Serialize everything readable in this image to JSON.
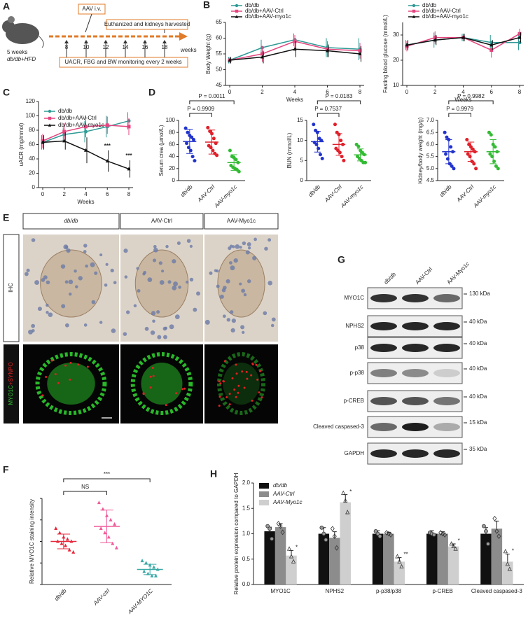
{
  "panels": [
    "A",
    "B",
    "C",
    "D",
    "E",
    "F",
    "G",
    "H"
  ],
  "schematic": {
    "age": "5 weeks",
    "model": "db/db+HFD",
    "injection": "AAV i.v.",
    "endpoint": "Euthanized and kidneys harvested",
    "weeks": [
      8,
      10,
      12,
      14,
      16,
      18
    ],
    "unit": "weeks",
    "monitoring": "UACR, FBG and BW monitoring every 2 weeks"
  },
  "chart_data": [
    {
      "type": "line",
      "y_label": "Body Weight (g)",
      "x_label": "Weeks",
      "legend": "top",
      "x": [
        0,
        2,
        4,
        6,
        8
      ],
      "xlim": [
        0,
        8
      ],
      "xticks": [
        0,
        2,
        4,
        6,
        8
      ],
      "ylim": [
        45,
        65
      ],
      "yticks": [
        45,
        50,
        55,
        60,
        65
      ],
      "series": [
        {
          "name": "db/db",
          "color": "#2f9a96",
          "marker": "circle",
          "values": [
            53,
            57,
            59.5,
            57,
            56.5
          ],
          "errors": [
            1,
            2.5,
            2,
            3,
            3.5
          ]
        },
        {
          "name": "db/db+AAV-Ctrl",
          "color": "#e5457f",
          "marker": "square",
          "values": [
            53,
            55,
            59,
            56.5,
            56
          ],
          "errors": [
            1,
            2.5,
            2,
            2.5,
            2.5
          ]
        },
        {
          "name": "db/db+AAV-myo1c",
          "color": "#111111",
          "marker": "triangle",
          "values": [
            53,
            54,
            56.5,
            56,
            55
          ],
          "errors": [
            1,
            2,
            2.5,
            2,
            2.5
          ]
        }
      ]
    },
    {
      "type": "line",
      "y_label": "Fasting blood glucose (mmol/L)",
      "x_label": "Weeks",
      "legend": "top",
      "x": [
        0,
        2,
        4,
        6,
        8
      ],
      "xlim": [
        0,
        8
      ],
      "xticks": [
        0,
        2,
        4,
        6,
        8
      ],
      "ylim": [
        10,
        35
      ],
      "yticks": [
        10,
        20,
        30
      ],
      "series": [
        {
          "name": "db/db",
          "color": "#2f9a96",
          "marker": "circle",
          "values": [
            26,
            28,
            29,
            27,
            27
          ],
          "errors": [
            2,
            3,
            1.5,
            3,
            3
          ]
        },
        {
          "name": "db/db+AAV-Ctrl",
          "color": "#e5457f",
          "marker": "square",
          "values": [
            25.5,
            29,
            29,
            24,
            30.5
          ],
          "errors": [
            2,
            2.5,
            1.5,
            3,
            2
          ]
        },
        {
          "name": "db/db+AAV-myo1c",
          "color": "#111111",
          "marker": "triangle",
          "values": [
            26,
            28,
            29,
            26,
            29
          ],
          "errors": [
            2,
            2,
            1.5,
            2,
            2
          ]
        }
      ]
    },
    {
      "type": "line",
      "y_label": "uACR (mg/mmol)",
      "x_label": "Weeks",
      "legend": "top-left",
      "x": [
        0,
        2,
        4,
        6,
        8
      ],
      "xlim": [
        0,
        8
      ],
      "xticks": [
        0,
        2,
        4,
        6,
        8
      ],
      "ylim": [
        0,
        120
      ],
      "yticks": [
        0,
        20,
        40,
        60,
        80,
        100,
        120
      ],
      "series": [
        {
          "name": "db/db",
          "color": "#2f9a96",
          "marker": "circle",
          "values": [
            63,
            74,
            78,
            85,
            93
          ],
          "errors": [
            10,
            10,
            15,
            15,
            12
          ]
        },
        {
          "name": "db/db+AAV-Ctrl",
          "color": "#e5457f",
          "marker": "square",
          "values": [
            65,
            78,
            85,
            87,
            85
          ],
          "errors": [
            10,
            12,
            15,
            12,
            12
          ]
        },
        {
          "name": "db/db+AAV-myo1c",
          "color": "#111111",
          "marker": "triangle",
          "values": [
            63,
            65,
            52,
            37,
            26
          ],
          "errors": [
            10,
            12,
            18,
            15,
            12
          ]
        }
      ],
      "annotations": [
        {
          "text": "***",
          "x": 6
        },
        {
          "text": "***",
          "x": 8
        }
      ]
    },
    {
      "type": "dot",
      "y_label": "Serum crea (μmol/L)",
      "categories": [
        "db/db",
        "AAV-Ctrl",
        "AAV-myo1c"
      ],
      "colors": [
        "#2233cc",
        "#e0202a",
        "#33bb33"
      ],
      "marker": "circle",
      "ylim": [
        0,
        100
      ],
      "yticks": [
        0,
        20,
        40,
        60,
        80,
        100
      ],
      "points": [
        [
          87,
          80,
          75,
          72,
          68,
          62,
          55,
          50,
          40,
          33
        ],
        [
          88,
          82,
          78,
          70,
          62,
          58,
          55,
          50,
          45,
          42
        ],
        [
          50,
          40,
          38,
          35,
          30,
          25,
          22,
          20,
          18,
          15
        ]
      ],
      "mean": [
        65,
        64,
        30
      ],
      "sd": [
        20,
        20,
        13
      ],
      "comparisons": [
        "P = 0.9909",
        "P = 0.0011"
      ]
    },
    {
      "type": "dot",
      "y_label": "BUN (mmol/L)",
      "categories": [
        "db/db",
        "AAV-Ctrl",
        "AAV-myo1c"
      ],
      "colors": [
        "#2233cc",
        "#e0202a",
        "#33bb33"
      ],
      "marker": "circle",
      "ylim": [
        0,
        15
      ],
      "yticks": [
        0,
        5,
        10,
        15
      ],
      "points": [
        [
          14,
          12.5,
          12,
          10.5,
          10,
          9.5,
          9,
          8,
          6.5,
          5.5
        ],
        [
          14,
          12,
          11.5,
          10,
          9,
          8,
          7.5,
          7,
          6,
          5
        ],
        [
          9,
          8.5,
          7.5,
          7,
          6.5,
          6,
          5.5,
          5,
          4.5,
          4.5
        ]
      ],
      "mean": [
        9.7,
        9,
        6.4
      ],
      "sd": [
        2.6,
        2.7,
        1.5
      ],
      "comparisons": [
        "P = 0.7537",
        "P = 0.0183"
      ]
    },
    {
      "type": "dot",
      "y_label": "Kidney/body weight (mg/g)",
      "categories": [
        "db/db",
        "AAV-Ctrl",
        "AAV-myo1c"
      ],
      "colors": [
        "#2233cc",
        "#e0202a",
        "#33bb33"
      ],
      "marker": "circle",
      "ylim": [
        4.5,
        7
      ],
      "yticks": [
        4.5,
        {
          "value": 5,
          "label": "5.0"
        },
        5.5,
        {
          "value": 6,
          "label": "6.0"
        },
        6.5,
        {
          "value": 7,
          "label": "7.0"
        }
      ],
      "points": [
        [
          6.5,
          6.3,
          6.2,
          5.9,
          5.7,
          5.6,
          5.4,
          5.2,
          5.1,
          5
        ],
        [
          6.2,
          6,
          5.9,
          5.8,
          5.7,
          5.6,
          5.5,
          5.3,
          5.2,
          5
        ],
        [
          6.5,
          6.4,
          6,
          5.9,
          5.7,
          5.6,
          5.5,
          5.3,
          5.1,
          5
        ]
      ],
      "mean": [
        5.7,
        5.7,
        5.7
      ],
      "sd": [
        0.5,
        0.4,
        0.5
      ],
      "comparisons": [
        "P = 0.9979",
        "P = 0.9982"
      ]
    },
    {
      "type": "dot",
      "y_label": "Relative MYO1C staining intensity",
      "categories": [
        "db/db",
        "AAV-ctrl",
        "AAV-MYO1C"
      ],
      "colors": [
        "#e8283c",
        "#ef5a9a",
        "#3aa9a6"
      ],
      "marker": "triangle",
      "tick_labels": false,
      "ylim": [
        0,
        2
      ],
      "yticks": [
        0,
        0.5,
        1,
        1.5,
        2
      ],
      "points": [
        [
          1.3,
          1.2,
          1.1,
          1.05,
          1,
          1,
          0.95,
          0.9,
          0.8,
          0.75
        ],
        [
          1.9,
          1.75,
          1.6,
          1.5,
          1.4,
          1.3,
          1.2,
          1.1,
          0.95,
          0.85
        ],
        [
          0.55,
          0.5,
          0.45,
          0.4,
          0.35,
          0.3,
          0.25,
          0.2,
          0.2
        ]
      ],
      "mean": [
        1,
        1.35,
        0.35
      ],
      "sd": [
        0.17,
        0.38,
        0.12
      ],
      "comparisons": [
        "NS",
        "***"
      ]
    },
    {
      "type": "bar",
      "y_label": "Relative protein expression compared to GAPDH",
      "legend": "top-left",
      "categories": [
        "MYO1C",
        "NPHS2",
        "p-p38/p38",
        "p-CREB",
        "Cleaved caspased-3"
      ],
      "ylim": [
        0,
        2
      ],
      "yticks": [
        {
          "value": 0,
          "label": "0.0"
        },
        0.5,
        {
          "value": 1,
          "label": "1.0"
        },
        1.5,
        {
          "value": 2,
          "label": "2.0"
        }
      ],
      "series": [
        {
          "name": "db/db",
          "color": "#111111",
          "marker": "circle",
          "values": [
            1.05,
            1,
            1,
            1,
            1
          ],
          "errors": [
            0.08,
            0.12,
            0.06,
            0.06,
            0.12
          ],
          "points": [
            [
              1.15,
              1.1,
              0.9
            ],
            [
              1.12,
              1,
              0.88
            ],
            [
              1.05,
              1,
              0.95
            ],
            [
              1.02,
              1,
              0.98
            ],
            [
              1.15,
              1.05,
              0.8
            ]
          ]
        },
        {
          "name": "AAV-Ctrl",
          "color": "#8c8c8c",
          "marker": "diamond",
          "values": [
            1.13,
            0.92,
            1,
            1,
            1.1
          ],
          "errors": [
            0.07,
            0.12,
            0.03,
            0.04,
            0.15
          ],
          "points": [
            [
              1.2,
              1.15,
              1.03
            ],
            [
              1.1,
              0.95,
              0.72
            ],
            [
              1.02,
              1,
              0.98
            ],
            [
              1.02,
              1,
              0.98
            ],
            [
              1.3,
              1.05,
              0.95
            ]
          ]
        },
        {
          "name": "AAV-Myo1c",
          "color": "#cfcfcf",
          "marker": "triangle",
          "values": [
            0.57,
            1.62,
            0.45,
            0.75,
            0.45
          ],
          "errors": [
            0.1,
            0.15,
            0.08,
            0.05,
            0.15
          ],
          "points": [
            [
              0.7,
              0.55,
              0.45
            ],
            [
              1.8,
              1.65,
              1.42
            ],
            [
              0.55,
              0.45,
              0.35
            ],
            [
              0.8,
              0.75,
              0.7
            ],
            [
              0.65,
              0.4,
              0.3
            ]
          ],
          "significance": [
            "*",
            "*",
            "**",
            "*",
            "*"
          ]
        }
      ]
    }
  ],
  "staining": {
    "columns": [
      "db/db",
      "AAV-Ctrl",
      "AAV-Myo1c"
    ],
    "rows": {
      "ihc": "IHC",
      "green": "MYO1C",
      "red": "+SYNPO"
    }
  },
  "western_blot": {
    "lanes": [
      "db/db",
      "AAV-Ctrl",
      "AAV-Myo1c"
    ],
    "rows": [
      {
        "label": "MYO1C",
        "marker": "130 kDa"
      },
      {
        "label": "NPHS2",
        "marker": "40 kDa"
      },
      {
        "label": "p38",
        "marker": "40 kDa"
      },
      {
        "label": "p-p38",
        "marker": "40 kDa"
      },
      {
        "label": "p-CREB",
        "marker": "40 kDa"
      },
      {
        "label": "Cleaved caspased-3",
        "marker": "15 kDa"
      },
      {
        "label": "GAPDH",
        "marker": "35 kDa"
      }
    ]
  }
}
